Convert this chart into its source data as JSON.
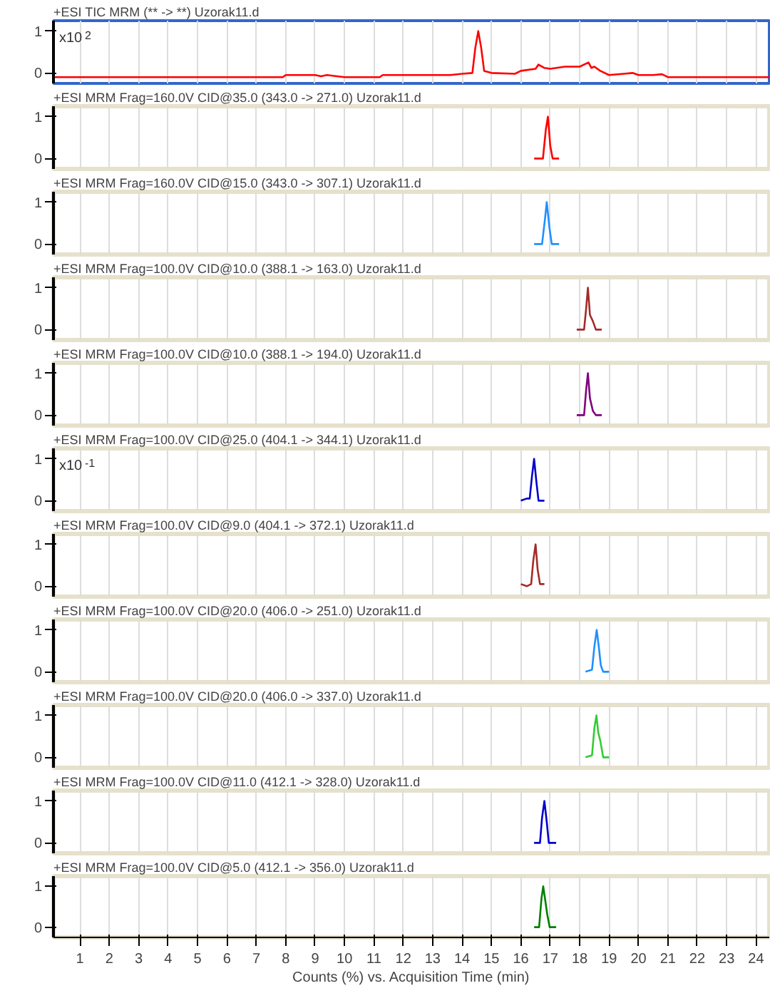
{
  "chart_data": [
    {
      "type": "line",
      "title": "+ESI TIC MRM (** -> **) Uzorak11.d",
      "annotations": [
        "x10$^{2}$"
      ],
      "color": "#ff0000",
      "x": [
        0.1,
        7.9,
        8.0,
        9.0,
        9.2,
        9.4,
        10.0,
        11.2,
        11.3,
        12.8,
        13.6,
        14.0,
        14.35,
        14.45,
        14.55,
        14.65,
        14.75,
        15.0,
        15.8,
        16.0,
        16.5,
        16.6,
        16.8,
        17.0,
        17.5,
        18.0,
        18.3,
        18.4,
        18.5,
        18.7,
        19.0,
        19.5,
        19.8,
        20.0,
        20.5,
        20.8,
        21.0,
        24.45
      ],
      "values": [
        -0.1,
        -0.1,
        -0.05,
        -0.05,
        -0.08,
        -0.05,
        -0.1,
        -0.1,
        -0.05,
        -0.05,
        -0.05,
        -0.02,
        0.0,
        0.6,
        1.0,
        0.6,
        0.05,
        0.0,
        -0.02,
        0.05,
        0.1,
        0.2,
        0.12,
        0.1,
        0.15,
        0.15,
        0.25,
        0.12,
        0.15,
        0.05,
        -0.05,
        -0.02,
        0.0,
        -0.05,
        -0.05,
        -0.03,
        -0.1,
        -0.1
      ],
      "xlim": [
        0.1,
        24.45
      ],
      "ylim": [
        -0.25,
        1.25
      ],
      "yticks": [
        0,
        1
      ],
      "xticks": [
        1,
        2,
        3,
        4,
        5,
        6,
        7,
        8,
        9,
        10,
        11,
        12,
        13,
        14,
        15,
        16,
        17,
        18,
        19,
        20,
        21,
        22,
        23,
        24
      ],
      "grid": "x",
      "tick_labels": "y"
    },
    {
      "type": "line",
      "title": "+ESI MRM Frag=160.0V CID@35.0 (343.0 -> 271.0) Uzorak11.d",
      "color": "#ff0000",
      "x": [
        16.45,
        16.75,
        16.85,
        16.92,
        17.0,
        17.08,
        17.3
      ],
      "values": [
        0,
        0,
        0.7,
        1.0,
        0.3,
        0,
        0
      ],
      "xlim": [
        0.1,
        24.45
      ],
      "ylim": [
        -0.25,
        1.25
      ],
      "yticks": [
        0,
        1
      ],
      "xticks": [
        1,
        2,
        3,
        4,
        5,
        6,
        7,
        8,
        9,
        10,
        11,
        12,
        13,
        14,
        15,
        16,
        17,
        18,
        19,
        20,
        21,
        22,
        23,
        24
      ],
      "grid": "x",
      "tick_labels": "y"
    },
    {
      "type": "line",
      "title": "+ESI MRM Frag=160.0V CID@15.0 (343.0 -> 307.1) Uzorak11.d",
      "color": "#1e90ff",
      "x": [
        16.45,
        16.72,
        16.82,
        16.88,
        16.97,
        17.05,
        17.3
      ],
      "values": [
        0,
        0,
        0.6,
        1.0,
        0.4,
        0,
        0
      ],
      "xlim": [
        0.1,
        24.45
      ],
      "ylim": [
        -0.25,
        1.25
      ],
      "yticks": [
        0,
        1
      ],
      "xticks": [
        1,
        2,
        3,
        4,
        5,
        6,
        7,
        8,
        9,
        10,
        11,
        12,
        13,
        14,
        15,
        16,
        17,
        18,
        19,
        20,
        21,
        22,
        23,
        24
      ],
      "grid": "x",
      "tick_labels": "y"
    },
    {
      "type": "line",
      "title": "+ESI MRM Frag=100.0V CID@10.0 (388.1 -> 163.0) Uzorak11.d",
      "color": "#a52a2a",
      "x": [
        17.9,
        18.15,
        18.22,
        18.28,
        18.35,
        18.45,
        18.55,
        18.75
      ],
      "values": [
        0,
        0,
        0.5,
        1.0,
        0.35,
        0.2,
        0,
        0
      ],
      "xlim": [
        0.1,
        24.45
      ],
      "ylim": [
        -0.25,
        1.25
      ],
      "yticks": [
        0,
        1
      ],
      "xticks": [
        1,
        2,
        3,
        4,
        5,
        6,
        7,
        8,
        9,
        10,
        11,
        12,
        13,
        14,
        15,
        16,
        17,
        18,
        19,
        20,
        21,
        22,
        23,
        24
      ],
      "grid": "x",
      "tick_labels": "y"
    },
    {
      "type": "line",
      "title": "+ESI MRM Frag=100.0V CID@10.0 (388.1 -> 194.0) Uzorak11.d",
      "color": "#800080",
      "x": [
        17.9,
        18.15,
        18.22,
        18.28,
        18.35,
        18.45,
        18.55,
        18.75
      ],
      "values": [
        0,
        0,
        0.6,
        1.0,
        0.4,
        0.1,
        0,
        0
      ],
      "xlim": [
        0.1,
        24.45
      ],
      "ylim": [
        -0.25,
        1.25
      ],
      "yticks": [
        0,
        1
      ],
      "xticks": [
        1,
        2,
        3,
        4,
        5,
        6,
        7,
        8,
        9,
        10,
        11,
        12,
        13,
        14,
        15,
        16,
        17,
        18,
        19,
        20,
        21,
        22,
        23,
        24
      ],
      "grid": "x",
      "tick_labels": "y"
    },
    {
      "type": "line",
      "title": "+ESI MRM Frag=100.0V CID@25.0 (404.1 -> 344.1) Uzorak11.d",
      "annotations": [
        "x10$^{-1}$"
      ],
      "color": "#0000cc",
      "x": [
        16.0,
        16.2,
        16.3,
        16.38,
        16.45,
        16.52,
        16.6,
        16.8
      ],
      "values": [
        0,
        0.05,
        0.05,
        0.6,
        1.0,
        0.5,
        0,
        0
      ],
      "xlim": [
        0.1,
        24.45
      ],
      "ylim": [
        -0.25,
        1.25
      ],
      "yticks": [
        0,
        1
      ],
      "xticks": [
        1,
        2,
        3,
        4,
        5,
        6,
        7,
        8,
        9,
        10,
        11,
        12,
        13,
        14,
        15,
        16,
        17,
        18,
        19,
        20,
        21,
        22,
        23,
        24
      ],
      "grid": "x",
      "tick_labels": "y"
    },
    {
      "type": "line",
      "title": "+ESI MRM Frag=100.0V CID@9.0 (404.1 -> 372.1) Uzorak11.d",
      "color": "#a52a2a",
      "x": [
        16.0,
        16.2,
        16.35,
        16.42,
        16.5,
        16.57,
        16.65,
        16.8
      ],
      "values": [
        0.05,
        0.0,
        0.05,
        0.6,
        1.0,
        0.4,
        0.05,
        0.05
      ],
      "xlim": [
        0.1,
        24.45
      ],
      "ylim": [
        -0.25,
        1.25
      ],
      "yticks": [
        0,
        1
      ],
      "xticks": [
        1,
        2,
        3,
        4,
        5,
        6,
        7,
        8,
        9,
        10,
        11,
        12,
        13,
        14,
        15,
        16,
        17,
        18,
        19,
        20,
        21,
        22,
        23,
        24
      ],
      "grid": "x",
      "tick_labels": "y"
    },
    {
      "type": "line",
      "title": "+ESI MRM Frag=100.0V CID@20.0 (406.0 -> 251.0) Uzorak11.d",
      "color": "#1e90ff",
      "x": [
        18.2,
        18.42,
        18.5,
        18.58,
        18.65,
        18.72,
        18.8,
        19.0
      ],
      "values": [
        0,
        0.05,
        0.6,
        1.0,
        0.6,
        0.15,
        0,
        0
      ],
      "xlim": [
        0.1,
        24.45
      ],
      "ylim": [
        -0.25,
        1.25
      ],
      "yticks": [
        0,
        1
      ],
      "xticks": [
        1,
        2,
        3,
        4,
        5,
        6,
        7,
        8,
        9,
        10,
        11,
        12,
        13,
        14,
        15,
        16,
        17,
        18,
        19,
        20,
        21,
        22,
        23,
        24
      ],
      "grid": "x",
      "tick_labels": "y"
    },
    {
      "type": "line",
      "title": "+ESI MRM Frag=100.0V CID@20.0 (406.0 -> 337.0) Uzorak11.d",
      "color": "#33cc33",
      "x": [
        18.2,
        18.42,
        18.5,
        18.57,
        18.63,
        18.7,
        18.8,
        19.0
      ],
      "values": [
        0,
        0.05,
        0.7,
        1.0,
        0.6,
        0.4,
        0,
        0
      ],
      "xlim": [
        0.1,
        24.45
      ],
      "ylim": [
        -0.25,
        1.25
      ],
      "yticks": [
        0,
        1
      ],
      "xticks": [
        1,
        2,
        3,
        4,
        5,
        6,
        7,
        8,
        9,
        10,
        11,
        12,
        13,
        14,
        15,
        16,
        17,
        18,
        19,
        20,
        21,
        22,
        23,
        24
      ],
      "grid": "x",
      "tick_labels": "y"
    },
    {
      "type": "line",
      "title": "+ESI MRM Frag=100.0V CID@11.0 (412.1 -> 328.0) Uzorak11.d",
      "color": "#0000cc",
      "x": [
        16.45,
        16.65,
        16.72,
        16.8,
        16.88,
        16.95,
        17.2
      ],
      "values": [
        0,
        0,
        0.6,
        1.0,
        0.5,
        0,
        0
      ],
      "xlim": [
        0.1,
        24.45
      ],
      "ylim": [
        -0.25,
        1.25
      ],
      "yticks": [
        0,
        1
      ],
      "xticks": [
        1,
        2,
        3,
        4,
        5,
        6,
        7,
        8,
        9,
        10,
        11,
        12,
        13,
        14,
        15,
        16,
        17,
        18,
        19,
        20,
        21,
        22,
        23,
        24
      ],
      "grid": "x",
      "tick_labels": "y"
    },
    {
      "type": "line",
      "title": "+ESI MRM Frag=100.0V CID@5.0 (412.1 -> 356.0) Uzorak11.d",
      "xlabel": "Counts (%) vs. Acquisition Time (min)",
      "color": "#008000",
      "x": [
        16.45,
        16.62,
        16.7,
        16.76,
        16.82,
        16.9,
        16.98,
        17.2
      ],
      "values": [
        0,
        0,
        0.7,
        1.0,
        0.7,
        0.3,
        0,
        0
      ],
      "xlim": [
        0.1,
        24.45
      ],
      "ylim": [
        -0.25,
        1.25
      ],
      "yticks": [
        0,
        1
      ],
      "xticks": [
        1,
        2,
        3,
        4,
        5,
        6,
        7,
        8,
        9,
        10,
        11,
        12,
        13,
        14,
        15,
        16,
        17,
        18,
        19,
        20,
        21,
        22,
        23,
        24
      ],
      "grid": "x"
    }
  ]
}
